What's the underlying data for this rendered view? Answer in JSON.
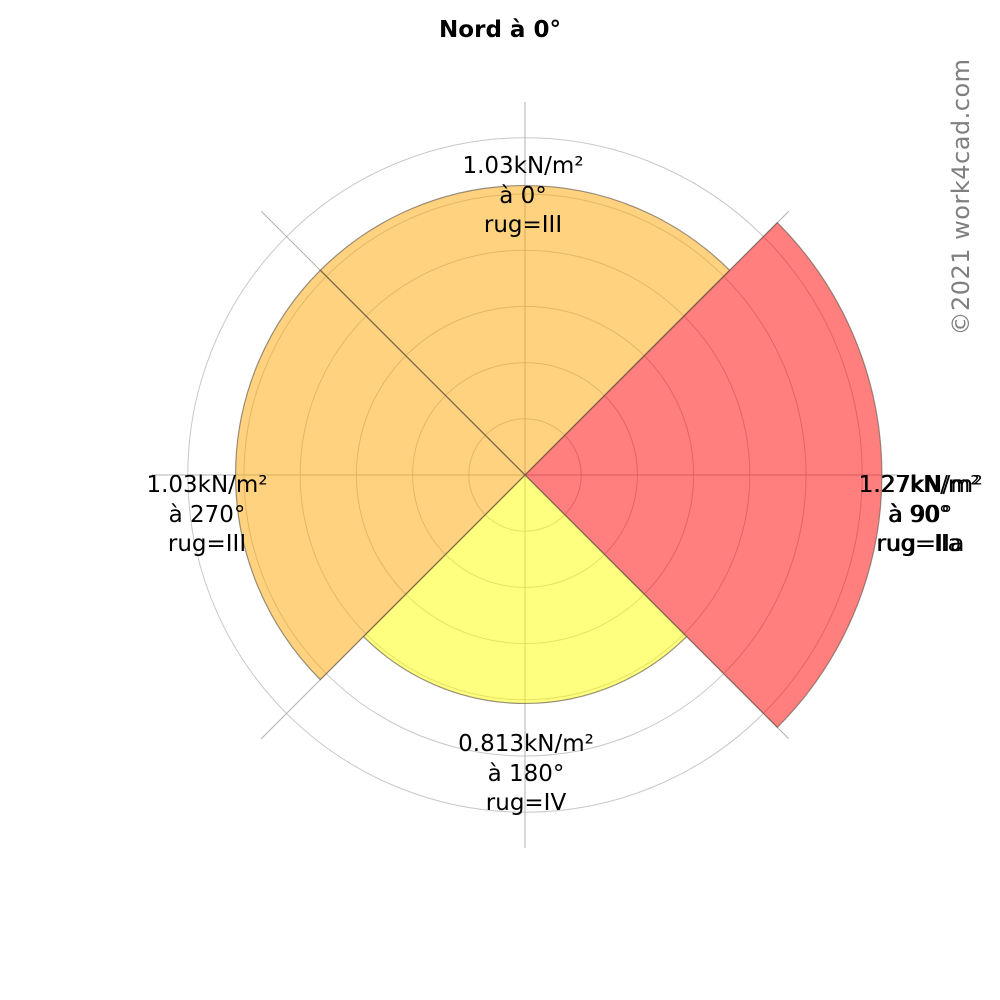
{
  "title": "Nord à 0°",
  "watermark": "©2021 work4cad.com",
  "colors": {
    "orange_fill": "rgba(255,165,0,0.5)",
    "red_fill": "rgba(255,0,0,0.5)",
    "yellow_fill": "rgba(255,255,0,0.5)",
    "sector_edge": "rgba(100,88,76,0.65)",
    "ring_grid": "#c8c8c8",
    "axis_line": "#b2b2b2",
    "watermark_gray": "#7f7f7f"
  },
  "labels": {
    "north": {
      "line1": "1.03kN/m²",
      "line2": "à 0°",
      "line3": "rug=III"
    },
    "east": {
      "line1": "1.27kN/m²",
      "line2": "à 90°",
      "line3": "rug=IIa"
    },
    "south": {
      "line1": "0.813kN/m²",
      "line2": "à 180°",
      "line3": "rug=IV"
    },
    "west": {
      "line1": "1.03kN/m²",
      "line2": "à 270°",
      "line3": "rug=III"
    }
  },
  "chart_data": {
    "type": "pie",
    "variant": "polar-wind-pressure-rose",
    "title": "Nord à 0°",
    "units": "kN/m²",
    "ring_values": [
      0.2,
      0.4,
      0.6,
      0.8,
      1.0,
      1.2
    ],
    "radial_range": [
      0,
      1.35
    ],
    "grid": true,
    "sectors": [
      {
        "direction_deg": 0,
        "span_deg": [
          315,
          45
        ],
        "value": 1.03,
        "rugosity": "III",
        "fill": "rgba(255,165,0,0.5)"
      },
      {
        "direction_deg": 90,
        "span_deg": [
          45,
          135
        ],
        "value": 1.27,
        "rugosity": "IIa",
        "fill": "rgba(255,0,0,0.5)"
      },
      {
        "direction_deg": 180,
        "span_deg": [
          135,
          225
        ],
        "value": 0.813,
        "rugosity": "IV",
        "fill": "rgba(255,255,0,0.5)"
      },
      {
        "direction_deg": 270,
        "span_deg": [
          225,
          315
        ],
        "value": 1.03,
        "rugosity": "III",
        "fill": "rgba(255,165,0,0.5)"
      }
    ]
  }
}
